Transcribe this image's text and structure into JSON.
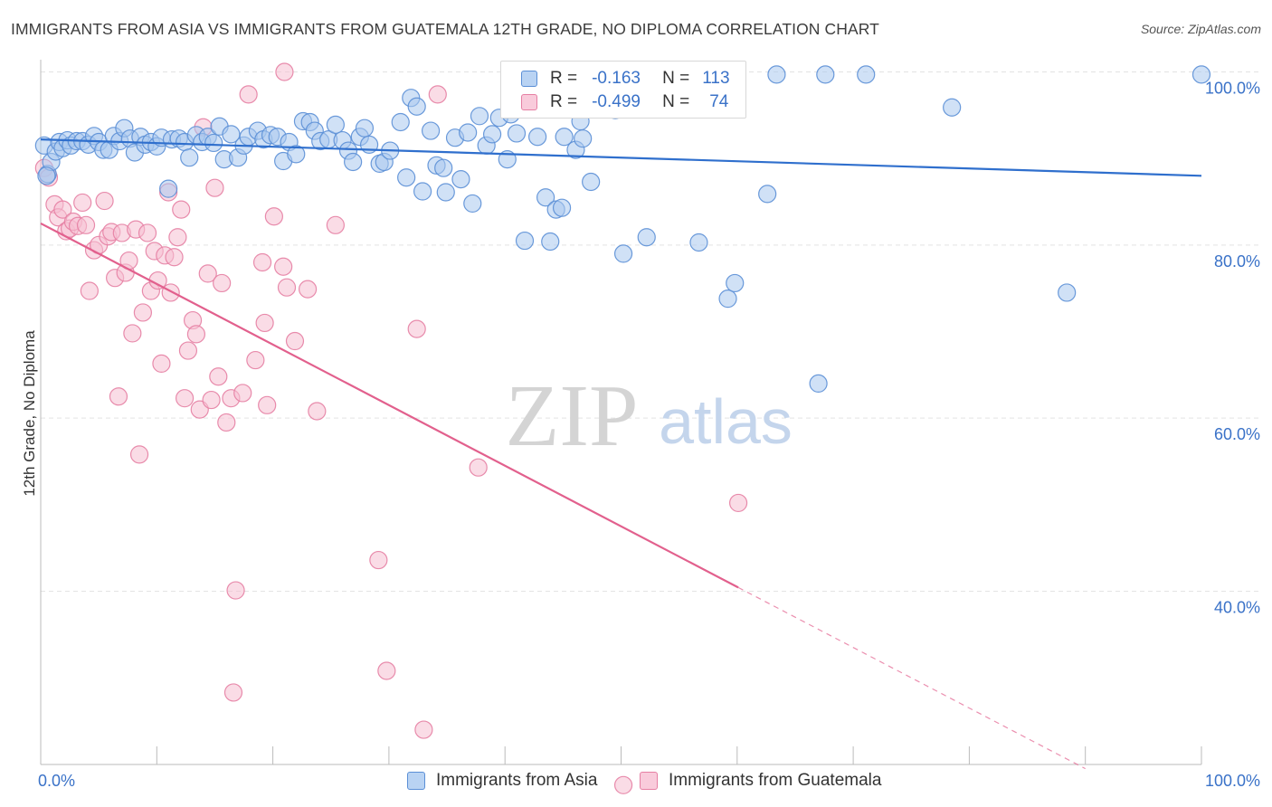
{
  "title": "IMMIGRANTS FROM ASIA VS IMMIGRANTS FROM GUATEMALA 12TH GRADE, NO DIPLOMA CORRELATION CHART",
  "source": "Source: ZipAtlas.com",
  "watermark": {
    "zip": "ZIP",
    "atlas": "atlas"
  },
  "colors": {
    "asia_fill": "#a9c8ef",
    "asia_stroke": "#5b8fd6",
    "asia_line": "#2f6fcd",
    "guatemala_fill": "#f6bfd2",
    "guatemala_stroke": "#e67fa3",
    "guatemala_line": "#e2608d",
    "tick_label": "#3a72c8",
    "grid": "#e3e3e3"
  },
  "legend": {
    "rows": [
      {
        "r_label": "R =",
        "r_value": "-0.163",
        "n_label": "N =",
        "n_value": "113"
      },
      {
        "r_label": "R =",
        "r_value": "-0.499",
        "n_label": "N =",
        "n_value": "74"
      }
    ]
  },
  "chart_data": {
    "type": "scatter",
    "title": "IMMIGRANTS FROM ASIA VS IMMIGRANTS FROM GUATEMALA 12TH GRADE, NO DIPLOMA CORRELATION CHART",
    "xlabel": "",
    "ylabel": "12th Grade, No Diploma",
    "xlim": [
      0,
      100
    ],
    "ylim": [
      18,
      102
    ],
    "x_tick_labels": [
      "0.0%",
      "100.0%"
    ],
    "y_ticks": [
      100,
      80,
      60,
      40
    ],
    "y_tick_labels": [
      "100.0%",
      "80.0%",
      "60.0%",
      "40.0%"
    ],
    "grid": true,
    "legend_position": "top-center",
    "series": [
      {
        "name": "Immigrants from Asia",
        "r": -0.163,
        "n": 113,
        "trend": {
          "x": [
            0,
            100
          ],
          "y": [
            92.2,
            88.0
          ],
          "dashed_from": null
        },
        "points": [
          [
            0.3,
            91.5
          ],
          [
            0.6,
            88.2
          ],
          [
            0.9,
            89.6
          ],
          [
            1.3,
            90.8
          ],
          [
            1.6,
            91.9
          ],
          [
            1.9,
            91.2
          ],
          [
            2.3,
            92.1
          ],
          [
            2.6,
            91.5
          ],
          [
            3.1,
            92.0
          ],
          [
            3.6,
            92.0
          ],
          [
            4.1,
            91.6
          ],
          [
            4.6,
            92.6
          ],
          [
            5.0,
            91.9
          ],
          [
            5.4,
            91.0
          ],
          [
            5.9,
            91.0
          ],
          [
            6.3,
            92.6
          ],
          [
            6.8,
            92.0
          ],
          [
            7.2,
            93.5
          ],
          [
            7.7,
            92.3
          ],
          [
            8.1,
            90.7
          ],
          [
            8.6,
            92.5
          ],
          [
            9.0,
            91.6
          ],
          [
            9.5,
            91.9
          ],
          [
            10.0,
            91.4
          ],
          [
            10.4,
            92.4
          ],
          [
            11.0,
            86.5
          ],
          [
            11.3,
            92.2
          ],
          [
            11.9,
            92.3
          ],
          [
            12.4,
            91.9
          ],
          [
            12.8,
            90.1
          ],
          [
            13.4,
            92.7
          ],
          [
            13.9,
            91.9
          ],
          [
            14.4,
            92.5
          ],
          [
            14.9,
            91.8
          ],
          [
            15.4,
            93.7
          ],
          [
            15.8,
            89.9
          ],
          [
            16.4,
            92.8
          ],
          [
            17.0,
            90.1
          ],
          [
            17.5,
            91.5
          ],
          [
            17.9,
            92.5
          ],
          [
            18.7,
            93.2
          ],
          [
            19.2,
            92.2
          ],
          [
            19.8,
            92.7
          ],
          [
            20.4,
            92.5
          ],
          [
            20.9,
            89.7
          ],
          [
            21.4,
            91.9
          ],
          [
            22.0,
            90.5
          ],
          [
            22.6,
            94.3
          ],
          [
            23.2,
            94.2
          ],
          [
            23.6,
            93.2
          ],
          [
            24.1,
            92.0
          ],
          [
            24.8,
            92.2
          ],
          [
            25.4,
            93.9
          ],
          [
            26.0,
            92.1
          ],
          [
            26.5,
            90.9
          ],
          [
            26.9,
            89.6
          ],
          [
            27.5,
            92.5
          ],
          [
            27.9,
            93.5
          ],
          [
            28.3,
            91.6
          ],
          [
            29.2,
            89.4
          ],
          [
            29.6,
            89.6
          ],
          [
            30.1,
            90.9
          ],
          [
            31.0,
            94.2
          ],
          [
            31.5,
            87.8
          ],
          [
            31.9,
            97.0
          ],
          [
            32.4,
            96.0
          ],
          [
            32.9,
            86.2
          ],
          [
            33.6,
            93.2
          ],
          [
            34.1,
            89.2
          ],
          [
            34.7,
            88.9
          ],
          [
            34.9,
            86.1
          ],
          [
            35.7,
            92.4
          ],
          [
            36.2,
            87.6
          ],
          [
            36.8,
            93.0
          ],
          [
            37.2,
            84.8
          ],
          [
            37.8,
            94.9
          ],
          [
            38.4,
            91.5
          ],
          [
            38.9,
            92.8
          ],
          [
            39.5,
            94.7
          ],
          [
            40.2,
            89.9
          ],
          [
            40.5,
            95.1
          ],
          [
            41.0,
            92.9
          ],
          [
            41.7,
            80.5
          ],
          [
            42.8,
            92.5
          ],
          [
            43.5,
            85.5
          ],
          [
            43.9,
            80.4
          ],
          [
            44.4,
            84.1
          ],
          [
            44.9,
            84.3
          ],
          [
            45.1,
            92.5
          ],
          [
            45.9,
            95.8
          ],
          [
            46.1,
            91.0
          ],
          [
            46.5,
            94.3
          ],
          [
            46.7,
            92.3
          ],
          [
            47.4,
            87.3
          ],
          [
            48.1,
            96.4
          ],
          [
            48.9,
            97.6
          ],
          [
            49.5,
            95.6
          ],
          [
            50.2,
            79.0
          ],
          [
            51.3,
            99.7
          ],
          [
            52.2,
            80.9
          ],
          [
            53.6,
            99.7
          ],
          [
            56.7,
            80.3
          ],
          [
            59.2,
            73.8
          ],
          [
            59.8,
            75.6
          ],
          [
            62.6,
            85.9
          ],
          [
            63.4,
            99.7
          ],
          [
            67.0,
            64.0
          ],
          [
            67.6,
            99.7
          ],
          [
            71.1,
            99.7
          ],
          [
            78.5,
            95.9
          ],
          [
            88.4,
            74.5
          ],
          [
            100.0,
            99.7
          ],
          [
            0.5,
            88.0
          ]
        ]
      },
      {
        "name": "Immigrants from Guatemala",
        "r": -0.499,
        "n": 74,
        "trend": {
          "x": [
            0,
            90
          ],
          "y": [
            82.5,
            19.5
          ],
          "dashed_from": 60.1
        },
        "points": [
          [
            0.3,
            88.9
          ],
          [
            0.7,
            87.8
          ],
          [
            1.2,
            84.7
          ],
          [
            1.5,
            83.2
          ],
          [
            1.9,
            84.1
          ],
          [
            2.2,
            81.6
          ],
          [
            2.5,
            81.9
          ],
          [
            2.8,
            82.7
          ],
          [
            3.2,
            82.2
          ],
          [
            3.6,
            84.9
          ],
          [
            3.9,
            82.3
          ],
          [
            4.2,
            74.7
          ],
          [
            4.6,
            79.4
          ],
          [
            5.0,
            80.0
          ],
          [
            5.5,
            85.1
          ],
          [
            5.8,
            81.0
          ],
          [
            6.1,
            81.5
          ],
          [
            6.4,
            76.2
          ],
          [
            6.7,
            62.5
          ],
          [
            7.0,
            81.4
          ],
          [
            7.3,
            76.8
          ],
          [
            7.6,
            78.2
          ],
          [
            7.9,
            69.8
          ],
          [
            8.2,
            81.8
          ],
          [
            8.5,
            55.8
          ],
          [
            8.8,
            72.2
          ],
          [
            9.2,
            81.4
          ],
          [
            9.5,
            74.7
          ],
          [
            9.8,
            79.3
          ],
          [
            10.1,
            75.9
          ],
          [
            10.4,
            66.3
          ],
          [
            10.7,
            78.8
          ],
          [
            11.0,
            86.1
          ],
          [
            11.2,
            74.5
          ],
          [
            11.5,
            78.6
          ],
          [
            11.8,
            80.9
          ],
          [
            12.1,
            84.1
          ],
          [
            12.4,
            62.3
          ],
          [
            12.7,
            67.8
          ],
          [
            13.1,
            71.3
          ],
          [
            13.4,
            69.7
          ],
          [
            13.7,
            61.0
          ],
          [
            14.0,
            93.6
          ],
          [
            14.4,
            76.7
          ],
          [
            14.7,
            62.1
          ],
          [
            15.0,
            86.6
          ],
          [
            15.3,
            64.8
          ],
          [
            15.6,
            75.6
          ],
          [
            16.0,
            59.5
          ],
          [
            16.4,
            62.3
          ],
          [
            16.8,
            40.1
          ],
          [
            16.6,
            28.3
          ],
          [
            17.4,
            62.9
          ],
          [
            18.5,
            66.7
          ],
          [
            19.1,
            78.0
          ],
          [
            19.3,
            71.0
          ],
          [
            19.5,
            61.5
          ],
          [
            20.1,
            83.3
          ],
          [
            20.9,
            77.5
          ],
          [
            21.2,
            75.1
          ],
          [
            21.9,
            68.9
          ],
          [
            23.0,
            74.9
          ],
          [
            23.8,
            60.8
          ],
          [
            25.4,
            82.3
          ],
          [
            29.1,
            43.6
          ],
          [
            29.8,
            30.8
          ],
          [
            32.4,
            70.3
          ],
          [
            33.0,
            24.0
          ],
          [
            34.2,
            97.4
          ],
          [
            37.7,
            54.3
          ],
          [
            50.2,
            17.6
          ],
          [
            60.1,
            50.2
          ],
          [
            17.9,
            97.4
          ],
          [
            21.0,
            100.0
          ]
        ]
      }
    ]
  }
}
